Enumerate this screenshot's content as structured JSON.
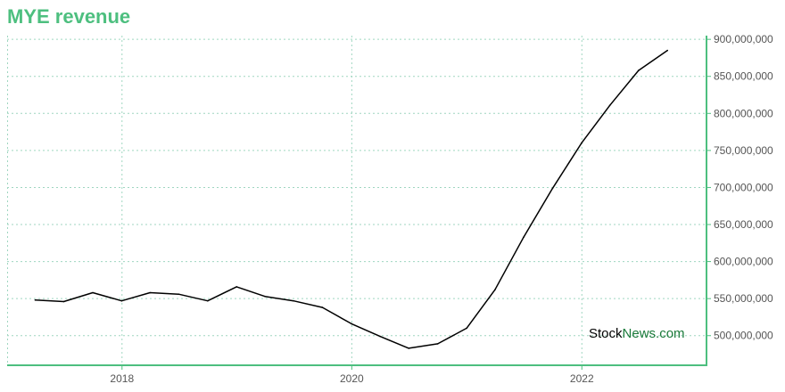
{
  "title": "MYE revenue",
  "watermark": {
    "part1": "Stock",
    "part2": "News",
    "part3": ".com"
  },
  "colors": {
    "title": "#4dbf7f",
    "axis": "#4dbf7f",
    "grid": "#9fd6c0",
    "line": "#000000",
    "watermark_dark": "#000000",
    "watermark_green": "#1a7a3a"
  },
  "chart_data": {
    "type": "line",
    "title": "MYE revenue",
    "xlabel": "",
    "ylabel": "",
    "grid": true,
    "y_axis_side": "right",
    "xlim": [
      "2017-01-01",
      "2023-02-01"
    ],
    "ylim": [
      460000000,
      905000000
    ],
    "x_ticks": [
      "2018",
      "2020",
      "2022"
    ],
    "y_ticks": [
      500000000,
      550000000,
      600000000,
      650000000,
      700000000,
      750000000,
      800000000,
      850000000,
      900000000
    ],
    "y_tick_labels": [
      "500,000,000",
      "550,000,000",
      "600,000,000",
      "650,000,000",
      "700,000,000",
      "750,000,000",
      "800,000,000",
      "850,000,000",
      "900,000,000"
    ],
    "series": [
      {
        "x": [
          "2017-03-31",
          "2017-06-30",
          "2017-09-30",
          "2017-12-31",
          "2018-03-31",
          "2018-06-30",
          "2018-09-30",
          "2018-12-31",
          "2019-03-31",
          "2019-06-30",
          "2019-09-30",
          "2019-12-31",
          "2020-03-31",
          "2020-06-30",
          "2020-09-30",
          "2020-12-31",
          "2021-03-31",
          "2021-06-30",
          "2021-09-30",
          "2021-12-31",
          "2022-03-31",
          "2022-06-30",
          "2022-09-30"
        ],
        "values": [
          548000000,
          546000000,
          558000000,
          547000000,
          558000000,
          556000000,
          547000000,
          566000000,
          553000000,
          547000000,
          538000000,
          516000000,
          499000000,
          483000000,
          489000000,
          510000000,
          562000000,
          633000000,
          699000000,
          760000000,
          811000000,
          858000000,
          885000000
        ]
      }
    ]
  }
}
